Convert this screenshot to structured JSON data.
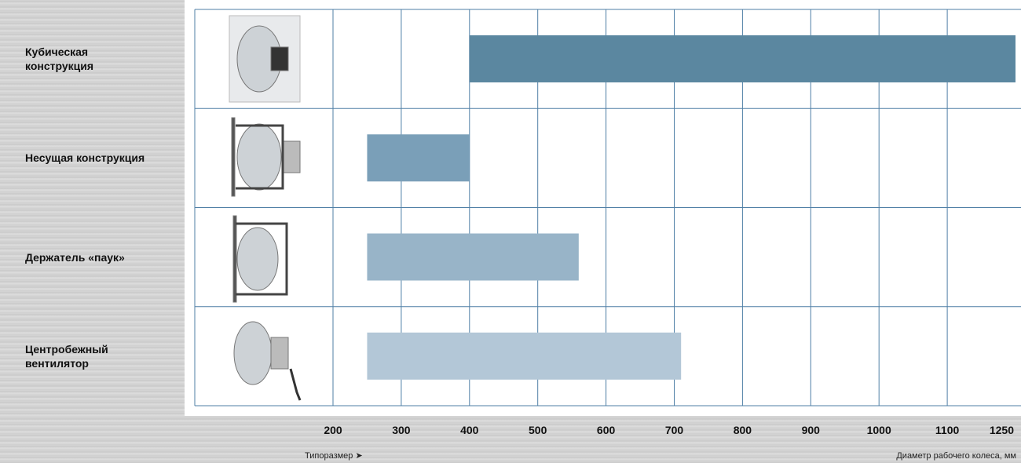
{
  "chart_data": {
    "type": "range-bar",
    "categories": [
      "Кубическая\nконструкция",
      "Несущая конструкция",
      "Держатель «паук»",
      "Центробежный\nвентилятор"
    ],
    "start": [
      400,
      250,
      250,
      250
    ],
    "end": [
      1250,
      400,
      560,
      710
    ],
    "colors": [
      "#5b87a0",
      "#7a9fb8",
      "#98b4c8",
      "#b3c7d7"
    ],
    "xlim": [
      200,
      1250
    ],
    "xticks": [
      200,
      300,
      400,
      500,
      600,
      700,
      800,
      900,
      1000,
      1100,
      1250
    ],
    "xlabel_left": "Типоразмер ➤",
    "xlabel_right": "Диаметр рабочего колеса, мм",
    "grid": true
  }
}
